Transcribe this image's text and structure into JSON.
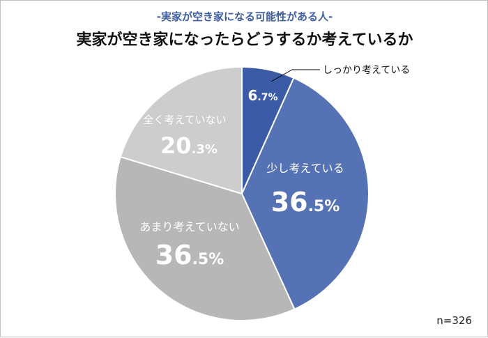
{
  "header": {
    "subtitle": "-実家が空き家になる可能性がある人-",
    "title": "実家が空き家になったらどうするか考えているか"
  },
  "footer": {
    "n_text": "n=326"
  },
  "chart_data": {
    "type": "pie",
    "title": "実家が空き家になったらどうするか考えているか",
    "subtitle": "-実家が空き家になる可能性がある人-",
    "start": "12 o'clock, clockwise",
    "slices": [
      {
        "label": "しっかり考えている",
        "value": 6.7,
        "int": "6",
        "dec": ".7%",
        "color": "#3c5ba6",
        "text_color": "#ffffff",
        "callout": true
      },
      {
        "label": "少し考えている",
        "value": 36.5,
        "int": "36",
        "dec": ".5%",
        "color": "#5572b5",
        "text_color": "#ffffff"
      },
      {
        "label": "あまり考えていない",
        "value": 36.5,
        "int": "36",
        "dec": ".5%",
        "color": "#b7b7b7",
        "text_color": "#ffffff"
      },
      {
        "label": "全く考えていない",
        "value": 20.3,
        "int": "20",
        "dec": ".3%",
        "color": "#cdcdcd",
        "text_color": "#ffffff"
      }
    ],
    "note": "n=326"
  }
}
